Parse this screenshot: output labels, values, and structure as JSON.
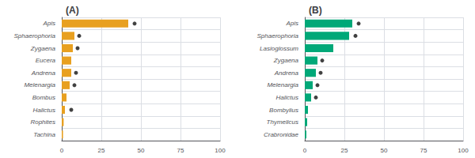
{
  "chart_data": [
    {
      "type": "bar",
      "orientation": "horizontal",
      "title": "(A)",
      "categories": [
        "Apis",
        "Sphaerophoria",
        "Zygaena",
        "Eucera",
        "Andrena",
        "Melenargia",
        "Bombus",
        "Halictus",
        "Rophites",
        "Tachina"
      ],
      "series": [
        {
          "type": "bar",
          "color": "#E8A020",
          "values": [
            42,
            8,
            7,
            6,
            6,
            5,
            3,
            2,
            1.2,
            0.8
          ]
        },
        {
          "type": "scatter",
          "color": "#111111",
          "marker": "circle",
          "values": [
            46,
            11,
            10,
            null,
            9,
            8,
            null,
            6,
            null,
            null
          ]
        }
      ],
      "xlim": [
        0,
        100
      ],
      "xticks": [
        0,
        25,
        50,
        75,
        100
      ],
      "grid": true
    },
    {
      "type": "bar",
      "orientation": "horizontal",
      "title": "(B)",
      "categories": [
        "Apis",
        "Sphaerophoria",
        "Lasioglossum",
        "Zygaena",
        "Andrena",
        "Melenargia",
        "Halictus",
        "Bombylius",
        "Thymelicus",
        "Crabronidae"
      ],
      "series": [
        {
          "type": "bar",
          "color": "#00A878",
          "values": [
            30,
            28,
            18,
            8,
            7,
            5,
            4,
            2,
            1.5,
            1.0
          ]
        },
        {
          "type": "scatter",
          "color": "#111111",
          "marker": "circle",
          "values": [
            34,
            32,
            null,
            11,
            10,
            8,
            7,
            null,
            null,
            null
          ]
        }
      ],
      "xlim": [
        0,
        100
      ],
      "xticks": [
        0,
        25,
        50,
        75,
        100
      ],
      "grid": true
    }
  ]
}
